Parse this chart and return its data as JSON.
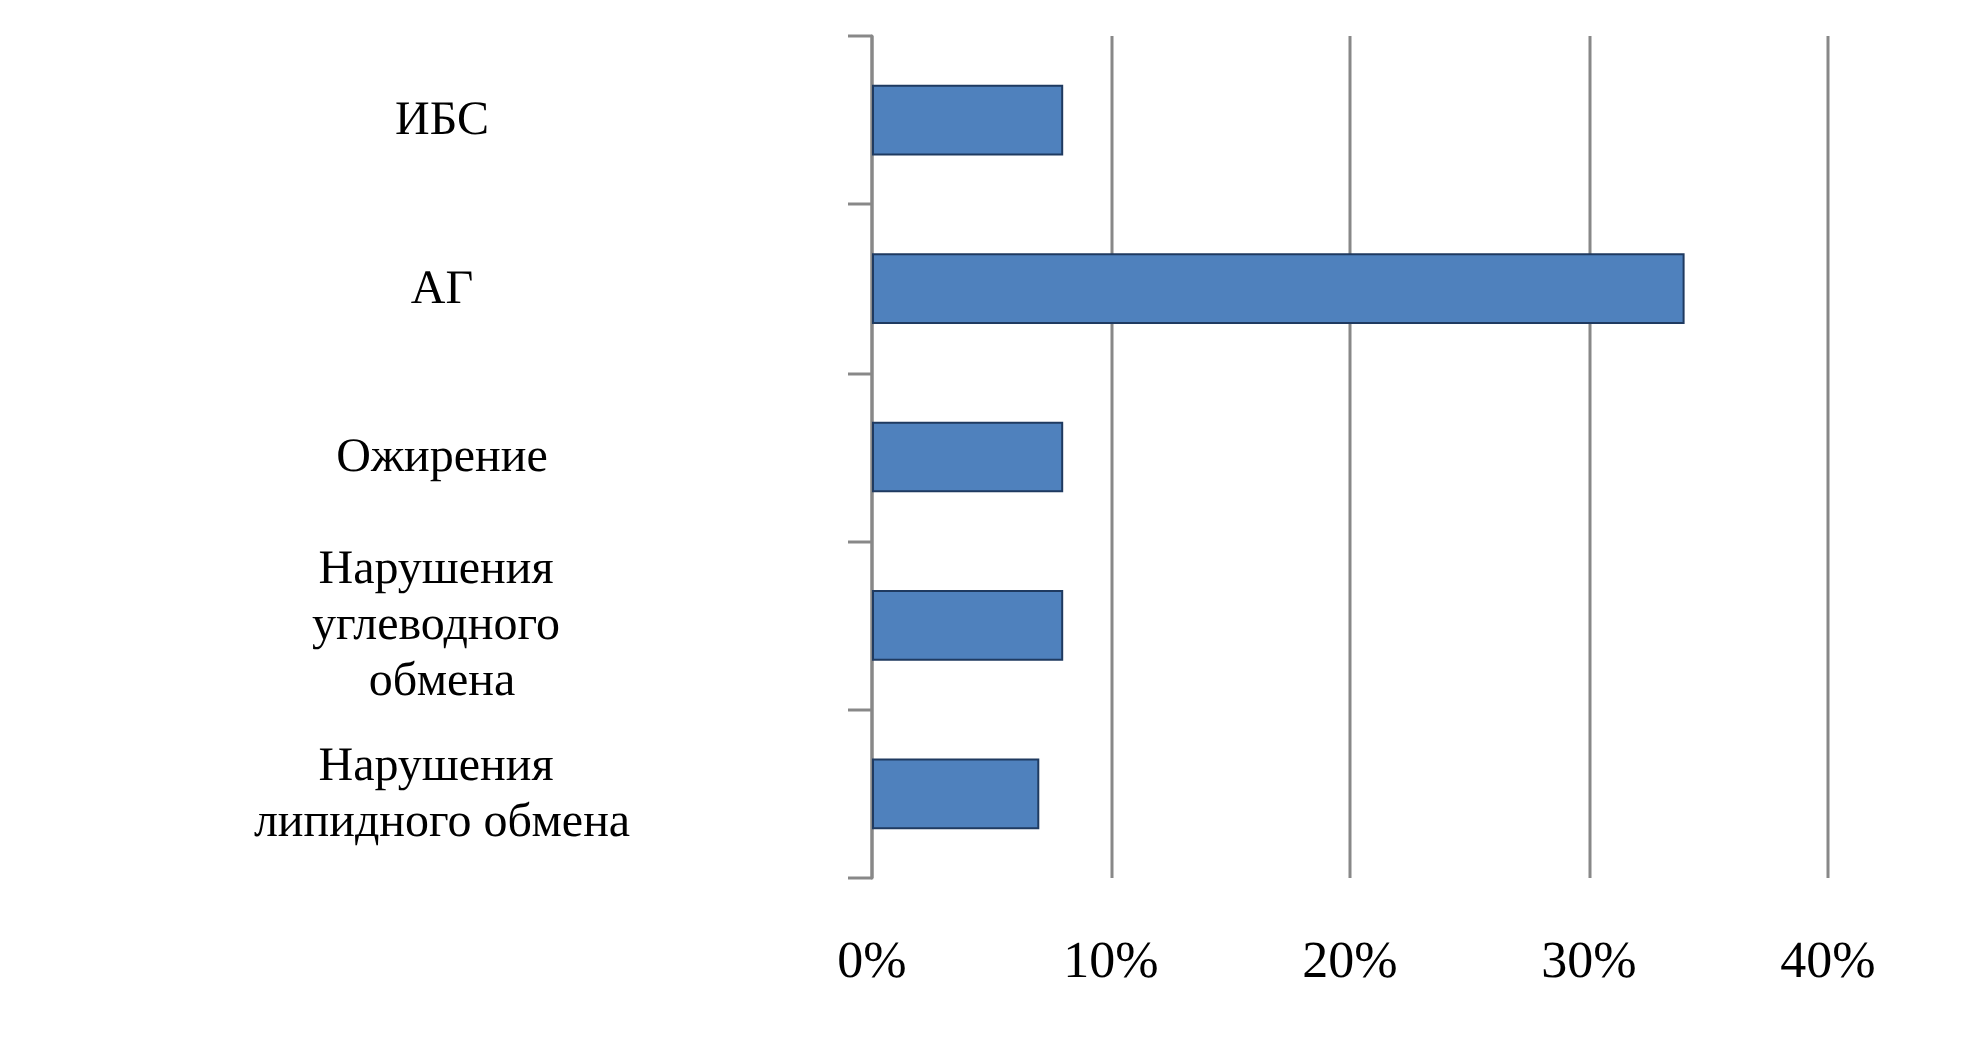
{
  "chart_data": {
    "type": "bar",
    "orientation": "horizontal",
    "categories": [
      "ИБС",
      "АГ",
      "Ожирение",
      "Нарушения углеводного обмена",
      "Нарушения липидного обмена"
    ],
    "values": [
      8,
      34,
      8,
      8,
      7
    ],
    "color": "#4f81bd",
    "xlim": [
      0,
      40
    ],
    "xticks": [
      {
        "value": 0,
        "label": "0%"
      },
      {
        "value": 10,
        "label": "10%"
      },
      {
        "value": 20,
        "label": "20%"
      },
      {
        "value": 30,
        "label": "30%"
      },
      {
        "value": 40,
        "label": "40%"
      }
    ],
    "grid": "x"
  }
}
